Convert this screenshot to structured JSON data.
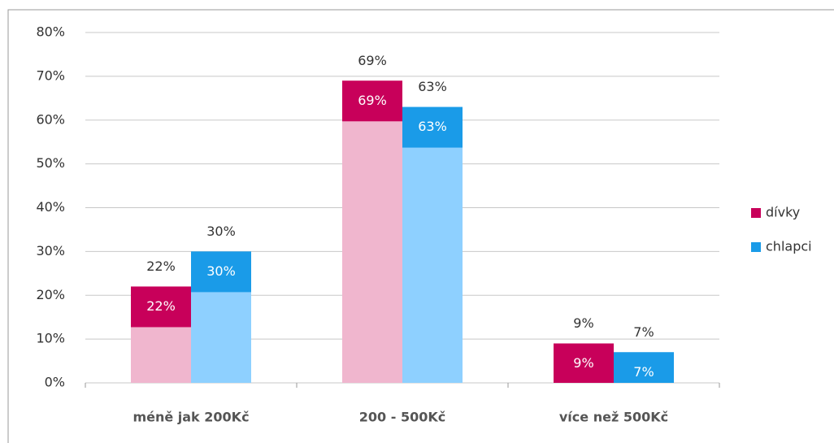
{
  "chart_data": {
    "type": "bar",
    "categories": [
      "méně jak 200Kč",
      "200 - 500Kč",
      "více než 500Kč"
    ],
    "series": [
      {
        "name": "dívky",
        "color": "#c8005a",
        "light_color": "#f0b6ce",
        "values": [
          22,
          69,
          9
        ],
        "value_labels": [
          "22%",
          "69%",
          "9%"
        ]
      },
      {
        "name": "chlapci",
        "color": "#1a9be8",
        "light_color": "#8ed0ff",
        "values": [
          30,
          63,
          7
        ],
        "value_labels": [
          "30%",
          "63%",
          "7%"
        ]
      }
    ],
    "ylim": [
      0,
      80
    ],
    "yticks": [
      {
        "value": 0,
        "label": "0%"
      },
      {
        "value": 10,
        "label": "10%"
      },
      {
        "value": 20,
        "label": "20%"
      },
      {
        "value": 30,
        "label": "30%"
      },
      {
        "value": 40,
        "label": "40%"
      },
      {
        "value": 50,
        "label": "50%"
      },
      {
        "value": 60,
        "label": "60%"
      },
      {
        "value": 70,
        "label": "70%"
      },
      {
        "value": 80,
        "label": "80%"
      }
    ],
    "grid": true,
    "legend": "right"
  }
}
